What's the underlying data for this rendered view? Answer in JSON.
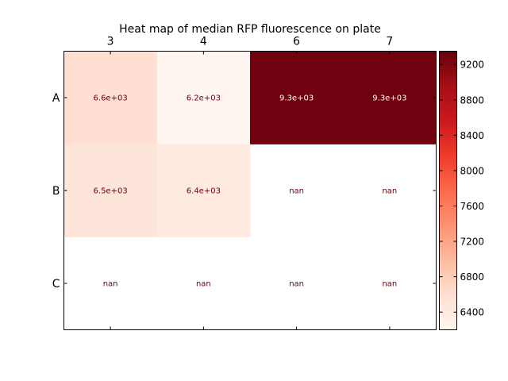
{
  "chart_data": {
    "type": "heatmap",
    "title": "Heat map of median RFP fluorescence on plate",
    "columns": [
      "3",
      "4",
      "6",
      "7"
    ],
    "rows": [
      "A",
      "B",
      "C"
    ],
    "values": [
      [
        6600,
        6200,
        9300,
        9300
      ],
      [
        6500,
        6400,
        null,
        null
      ],
      [
        null,
        null,
        null,
        null
      ]
    ],
    "cell_labels": [
      [
        "6.6e+03",
        "6.2e+03",
        "9.3e+03",
        "9.3e+03"
      ],
      [
        "6.5e+03",
        "6.4e+03",
        "nan",
        "nan"
      ],
      [
        "nan",
        "nan",
        "nan",
        "nan"
      ]
    ],
    "colorbar": {
      "colormap": "Reds",
      "range": [
        6200,
        9350
      ],
      "ticks": [
        "6400",
        "6800",
        "7200",
        "7600",
        "8000",
        "8400",
        "8800",
        "9200"
      ]
    },
    "x_axis_position": "top",
    "grid": false
  }
}
